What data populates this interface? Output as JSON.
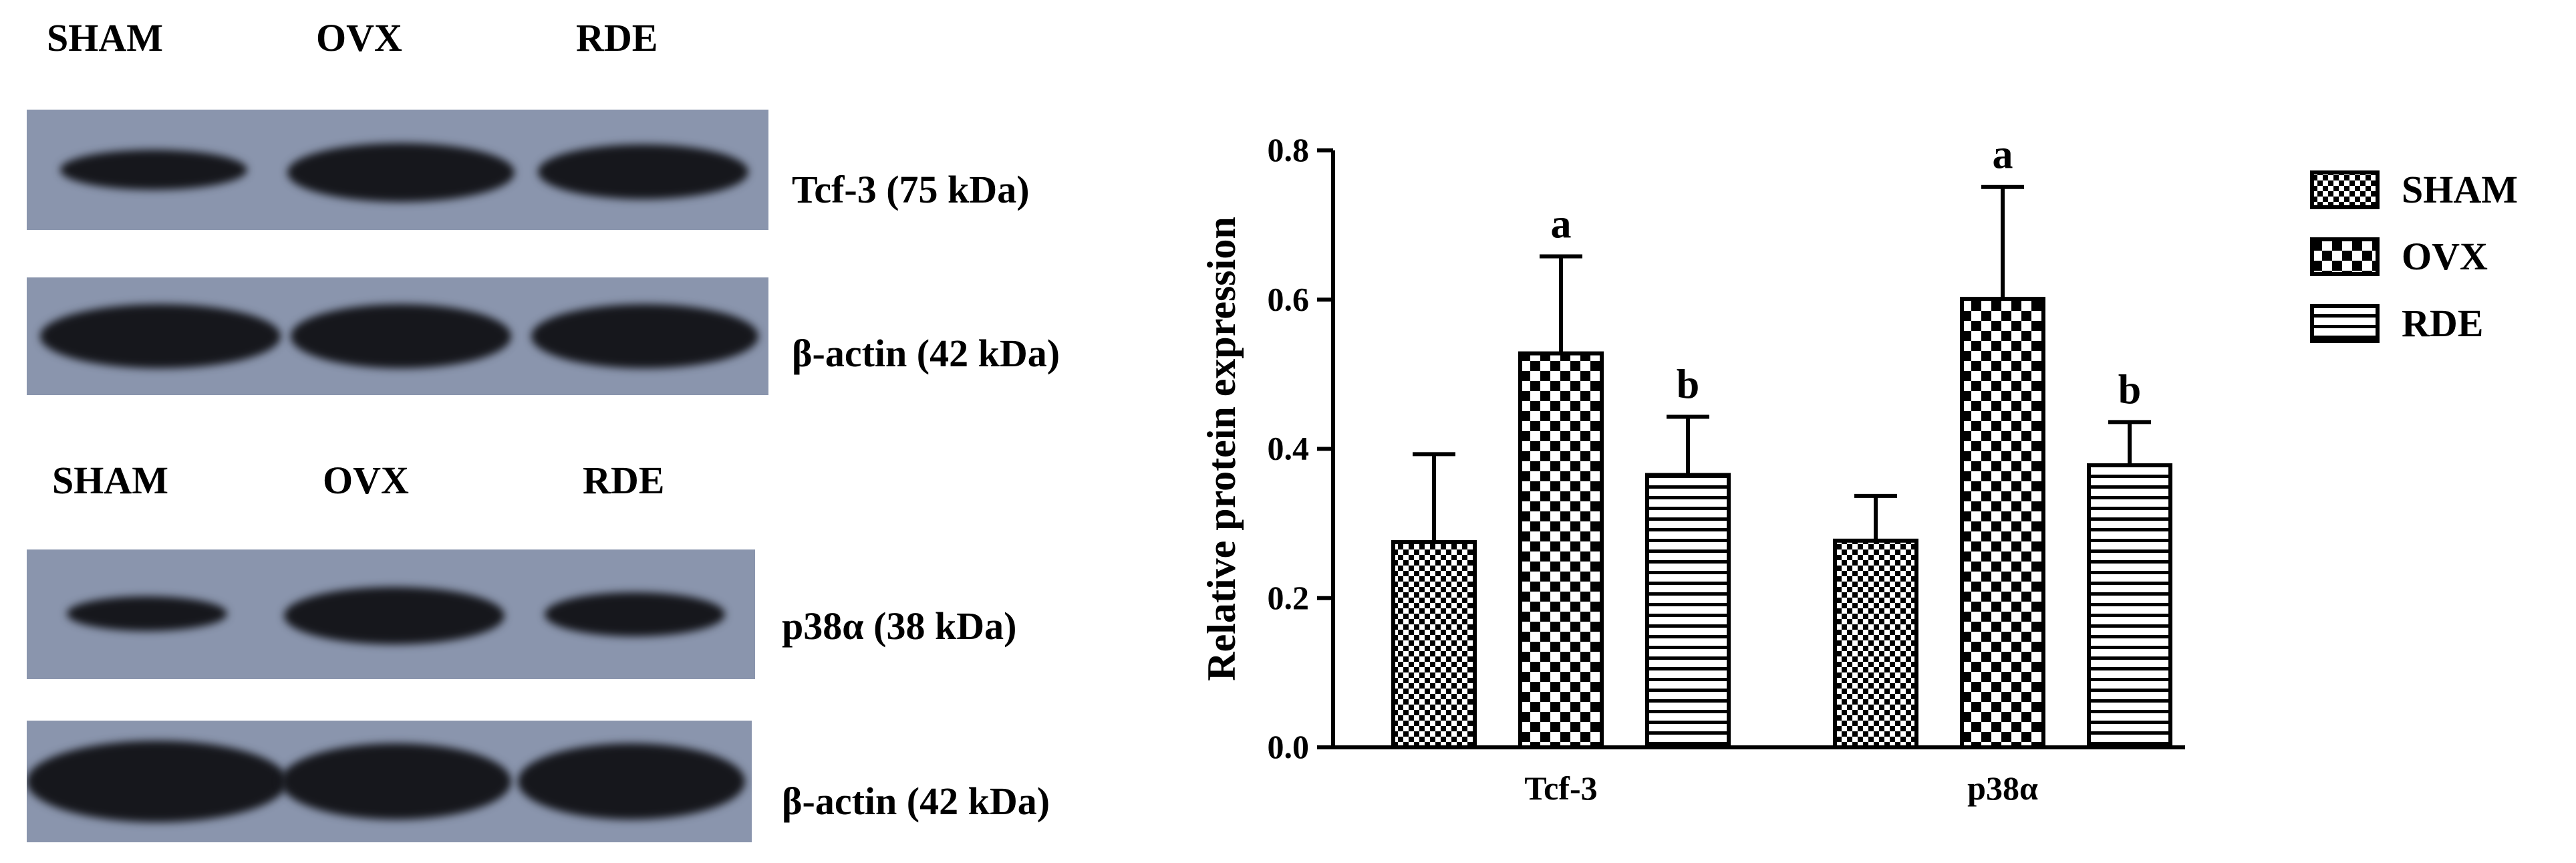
{
  "blots": {
    "panel1": {
      "lanes": [
        "SHAM",
        "OVX",
        "RDE"
      ],
      "target_label": "Tcf-3 (75 kDa)",
      "control_label": "β-actin (42 kDa)"
    },
    "panel2": {
      "lanes": [
        "SHAM",
        "OVX",
        "RDE"
      ],
      "target_label": "p38α (38 kDa)",
      "control_label": "β-actin (42 kDa)"
    }
  },
  "chart_data": {
    "type": "bar",
    "title": "",
    "xlabel": "",
    "ylabel": "Relative protein expression",
    "ylim": [
      0,
      0.8
    ],
    "yticks": [
      "0.0",
      "0.2",
      "0.4",
      "0.6",
      "0.8"
    ],
    "categories": [
      "Tcf-3",
      "p38α"
    ],
    "series": [
      {
        "name": "SHAM",
        "pattern": "checker-small",
        "values": [
          0.275,
          0.277
        ],
        "errors": [
          0.118,
          0.06
        ],
        "annotations": [
          "",
          ""
        ]
      },
      {
        "name": "OVX",
        "pattern": "checker-large",
        "values": [
          0.528,
          0.601
        ],
        "errors": [
          0.13,
          0.15
        ],
        "annotations": [
          "a",
          "a"
        ]
      },
      {
        "name": "RDE",
        "pattern": "horizontal-lines",
        "values": [
          0.365,
          0.378
        ],
        "errors": [
          0.078,
          0.058
        ],
        "annotations": [
          "b",
          "b"
        ]
      }
    ],
    "legend_position": "top-right"
  },
  "colors": {
    "blot_background": "#8a95ad",
    "band": "#16171c",
    "bar_stroke": "#000000"
  }
}
